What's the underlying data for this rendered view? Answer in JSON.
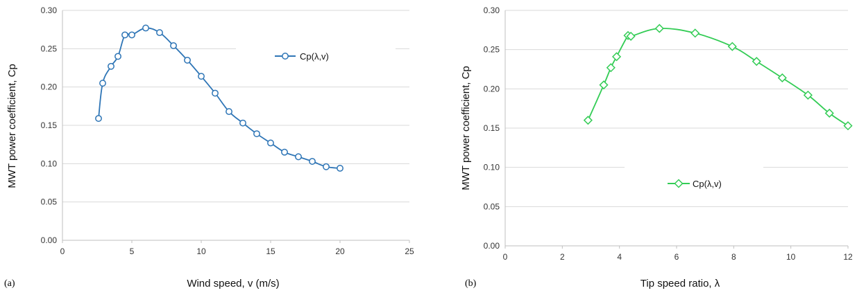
{
  "figure": {
    "left_panel_label": "(a)",
    "right_panel_label": "(b)"
  },
  "colors": {
    "left_series": "#2E75B6",
    "right_series": "#33CC55",
    "grid": "#d9d9d9",
    "axis": "#bfbfbf"
  },
  "chart_data": [
    {
      "type": "line",
      "panel": "(a)",
      "title": "",
      "xlabel": "Wind speed, v (m/s)",
      "ylabel": "MWT power coefficient, Cp",
      "xlim": [
        0,
        25
      ],
      "ylim": [
        0,
        0.3
      ],
      "xticks": [
        "0",
        "5",
        "10",
        "15",
        "20",
        "25"
      ],
      "yticks": [
        "0.00",
        "0.05",
        "0.10",
        "0.15",
        "0.20",
        "0.25",
        "0.30"
      ],
      "grid": "horizontal",
      "legend": "top-right",
      "marker": "circle",
      "series": [
        {
          "name": "Cp(λ,v)",
          "x": [
            2.6,
            2.9,
            3.5,
            4,
            4.5,
            5,
            6,
            7,
            8,
            9,
            10,
            11,
            12,
            13,
            14,
            15,
            16,
            17,
            18,
            19,
            20
          ],
          "y": [
            0.159,
            0.205,
            0.227,
            0.24,
            0.268,
            0.268,
            0.277,
            0.271,
            0.254,
            0.235,
            0.214,
            0.192,
            0.168,
            0.153,
            0.139,
            0.127,
            0.115,
            0.109,
            0.103,
            0.096,
            0.094
          ]
        }
      ]
    },
    {
      "type": "line",
      "panel": "(b)",
      "title": "",
      "xlabel": "Tip speed ratio, λ",
      "ylabel": "MWT power coefficient, Cp",
      "xlim": [
        0,
        12
      ],
      "ylim": [
        0,
        0.3
      ],
      "xticks": [
        "0",
        "2",
        "4",
        "6",
        "8",
        "10",
        "12"
      ],
      "yticks": [
        "0.00",
        "0.05",
        "0.10",
        "0.15",
        "0.20",
        "0.25",
        "0.30"
      ],
      "grid": "horizontal",
      "legend": "bottom-center",
      "marker": "diamond",
      "series": [
        {
          "name": "Cp(λ,v)",
          "x": [
            2.9,
            3.45,
            3.7,
            3.9,
            4.3,
            4.4,
            5.4,
            6.65,
            7.95,
            8.8,
            9.7,
            10.6,
            11.35,
            12
          ],
          "y": [
            0.16,
            0.205,
            0.227,
            0.241,
            0.268,
            0.267,
            0.277,
            0.271,
            0.254,
            0.235,
            0.214,
            0.192,
            0.169,
            0.153
          ]
        }
      ]
    }
  ]
}
